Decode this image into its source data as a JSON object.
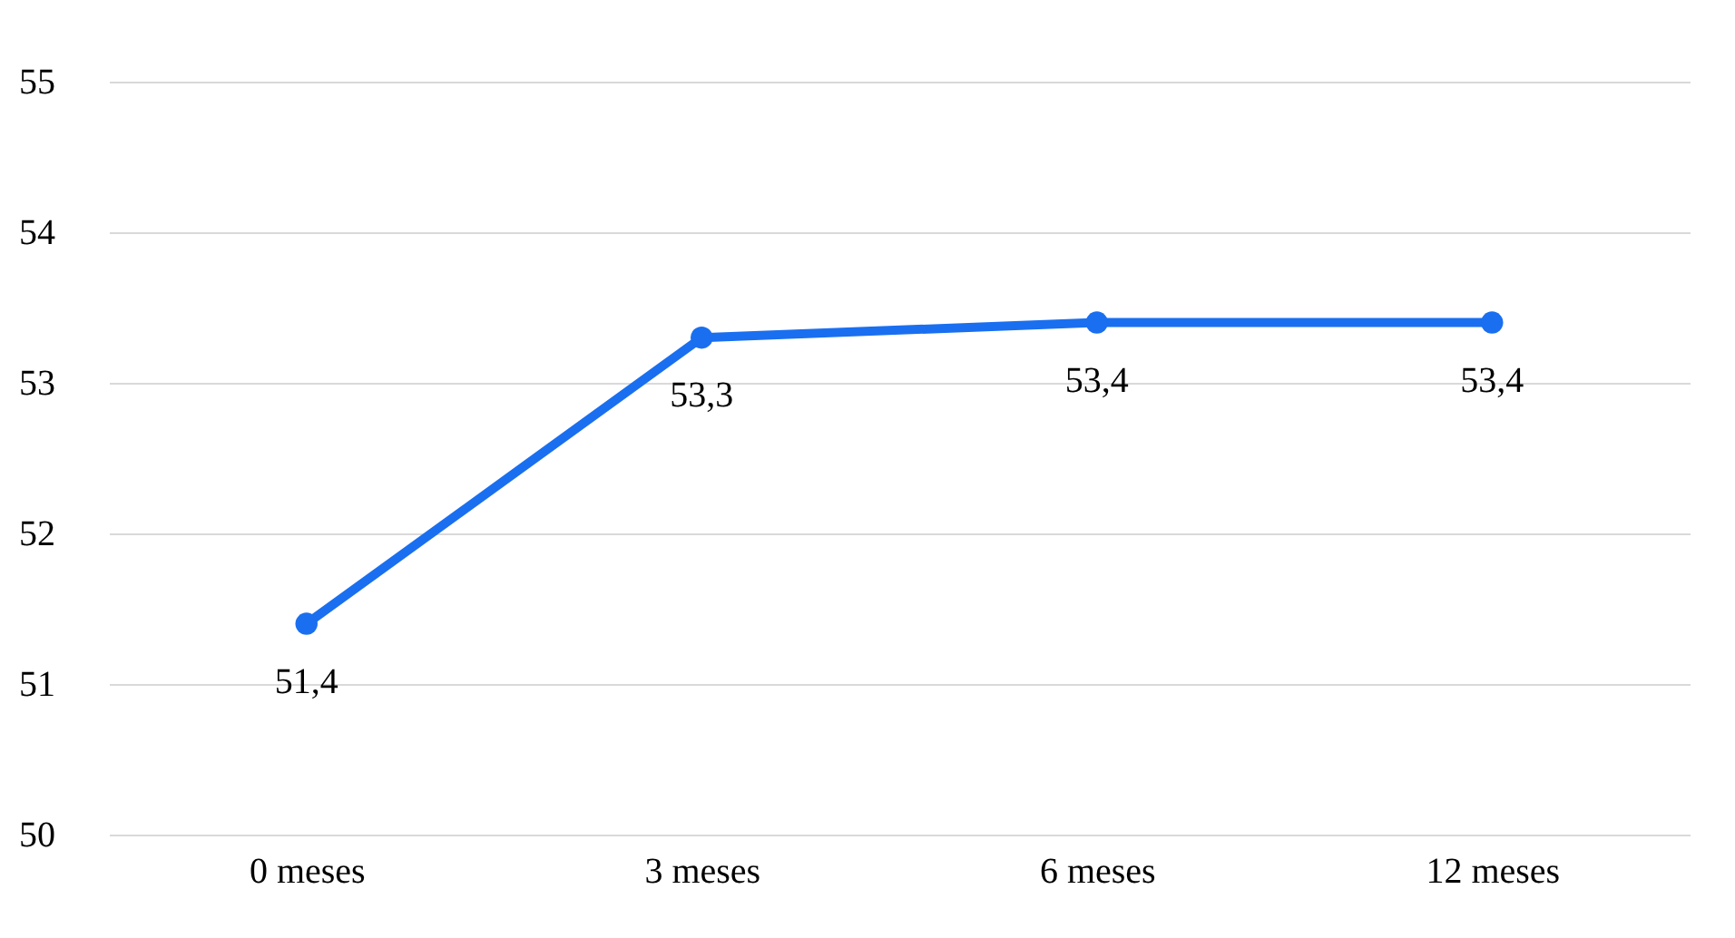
{
  "chart_data": {
    "type": "line",
    "categories": [
      "0 meses",
      "3 meses",
      "6 meses",
      "12 meses"
    ],
    "series": [
      {
        "color": "#1a6ff0",
        "values": [
          51.4,
          53.3,
          53.4,
          53.4
        ],
        "value_labels": [
          "51,4",
          "53,3",
          "53,4",
          "53,4"
        ]
      }
    ],
    "ylim": [
      50,
      55
    ],
    "yticks": [
      50,
      51,
      52,
      53,
      54,
      55
    ],
    "grid": "y",
    "marker": "circle",
    "line_style": "solid"
  }
}
